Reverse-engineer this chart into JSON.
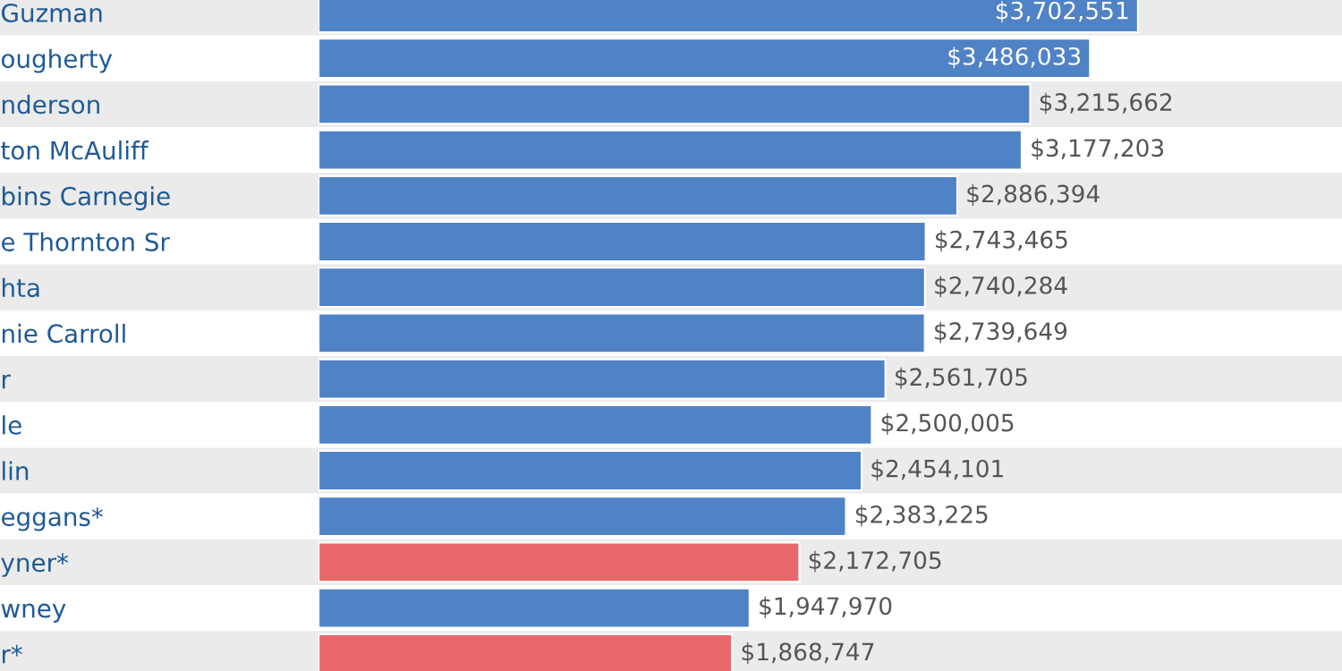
{
  "chart_data": {
    "type": "bar",
    "orientation": "horizontal",
    "categories": [
      "Guzman",
      "ougherty",
      "nderson",
      "ton McAuliff",
      "bins Carnegie",
      "e Thornton Sr",
      "hta",
      "nie Carroll",
      "r",
      "le",
      "lin",
      "eggans*",
      "yner*",
      "wney",
      "r*"
    ],
    "values": [
      3702551,
      3486033,
      3215662,
      3177203,
      2886394,
      2743465,
      2740284,
      2739649,
      2561705,
      2500005,
      2454101,
      2383225,
      2172705,
      1947970,
      1868747
    ],
    "colors": [
      "#5082c6",
      "#5082c6",
      "#5082c6",
      "#5082c6",
      "#5082c6",
      "#5082c6",
      "#5082c6",
      "#5082c6",
      "#5082c6",
      "#5082c6",
      "#5082c6",
      "#5082c6",
      "#e8686b",
      "#5082c6",
      "#e8686b"
    ],
    "value_labels": [
      "$3,702,551",
      "$3,486,033",
      "$3,215,662",
      "$3,177,203",
      "$2,886,394",
      "$2,743,465",
      "$2,740,284",
      "$2,739,649",
      "$2,561,705",
      "$2,500,005",
      "$2,454,101",
      "$2,383,225",
      "$2,172,705",
      "$1,947,970",
      "$1,868,747"
    ],
    "tick_labels": "y",
    "grid": false,
    "legend": false
  }
}
